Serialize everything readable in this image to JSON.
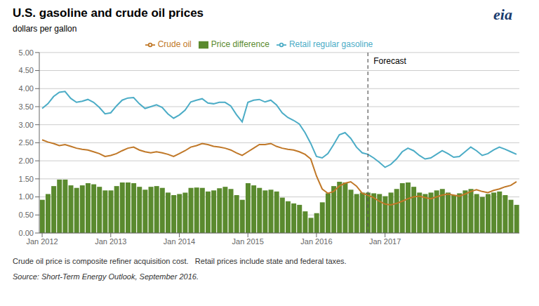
{
  "chart_data": {
    "type": "bar",
    "title": "U.S. gasoline and crude oil prices",
    "subtitle": "dollars per gallon",
    "footnote": "Crude oil price is composite refiner acquisition cost.   Retail prices include state and federal taxes.",
    "source": "Source: Short-Term Energy Outlook, September 2016.",
    "logo_text": "eia",
    "categories": [
      "Jan 2012",
      null,
      null,
      null,
      null,
      null,
      null,
      null,
      null,
      null,
      null,
      null,
      "Jan 2013",
      null,
      null,
      null,
      null,
      null,
      null,
      null,
      null,
      null,
      null,
      null,
      "Jan 2014",
      null,
      null,
      null,
      null,
      null,
      null,
      null,
      null,
      null,
      null,
      null,
      "Jan 2015",
      null,
      null,
      null,
      null,
      null,
      null,
      null,
      null,
      null,
      null,
      null,
      "Jan 2016",
      null,
      null,
      null,
      null,
      null,
      null,
      null,
      null,
      null,
      null,
      null,
      "Jan 2017",
      null,
      null,
      null,
      null,
      null,
      null,
      null,
      null,
      null,
      null,
      null,
      null,
      null,
      null,
      null,
      null,
      null,
      null,
      null,
      null,
      null,
      null,
      null
    ],
    "series": [
      {
        "name": "Price difference",
        "type": "bar",
        "color": "#5a8a2e",
        "values": [
          0.92,
          1.08,
          1.3,
          1.48,
          1.48,
          1.32,
          1.25,
          1.32,
          1.38,
          1.35,
          1.28,
          1.18,
          1.18,
          1.3,
          1.4,
          1.4,
          1.38,
          1.28,
          1.2,
          1.28,
          1.3,
          1.25,
          1.12,
          1.05,
          1.08,
          1.12,
          1.25,
          1.26,
          1.25,
          1.15,
          1.18,
          1.24,
          1.28,
          1.22,
          1.05,
          0.92,
          1.38,
          1.32,
          1.25,
          1.18,
          1.2,
          1.15,
          0.98,
          0.88,
          0.82,
          0.78,
          0.6,
          0.42,
          0.55,
          0.85,
          1.1,
          1.3,
          1.42,
          1.4,
          1.2,
          1.08,
          1.12,
          1.12,
          1.1,
          1.08,
          1.02,
          1.12,
          1.22,
          1.38,
          1.4,
          1.28,
          1.12,
          1.08,
          1.12,
          1.18,
          1.22,
          1.12,
          1.05,
          1.1,
          1.18,
          1.22,
          1.08,
          1.0,
          1.08,
          1.12,
          1.15,
          1.05,
          0.92,
          0.78
        ]
      },
      {
        "name": "Retail regular gasoline",
        "type": "line",
        "color": "#4bacc6",
        "values": [
          3.45,
          3.58,
          3.78,
          3.9,
          3.92,
          3.73,
          3.62,
          3.65,
          3.7,
          3.62,
          3.48,
          3.3,
          3.33,
          3.52,
          3.68,
          3.74,
          3.75,
          3.58,
          3.45,
          3.5,
          3.55,
          3.48,
          3.3,
          3.18,
          3.27,
          3.4,
          3.63,
          3.68,
          3.72,
          3.6,
          3.58,
          3.62,
          3.62,
          3.52,
          3.28,
          3.08,
          3.62,
          3.68,
          3.7,
          3.63,
          3.68,
          3.55,
          3.33,
          3.2,
          3.12,
          3.02,
          2.78,
          2.48,
          2.12,
          2.08,
          2.2,
          2.45,
          2.72,
          2.78,
          2.62,
          2.38,
          2.22,
          2.18,
          2.08,
          1.96,
          1.82,
          1.9,
          2.05,
          2.25,
          2.35,
          2.28,
          2.15,
          2.05,
          2.08,
          2.18,
          2.28,
          2.2,
          2.1,
          2.12,
          2.25,
          2.38,
          2.28,
          2.15,
          2.2,
          2.3,
          2.38,
          2.32,
          2.25,
          2.18
        ]
      },
      {
        "name": "Crude oil",
        "type": "line",
        "color": "#c07828",
        "values": [
          2.58,
          2.52,
          2.48,
          2.42,
          2.45,
          2.4,
          2.35,
          2.32,
          2.3,
          2.25,
          2.2,
          2.12,
          2.15,
          2.2,
          2.28,
          2.35,
          2.38,
          2.3,
          2.25,
          2.22,
          2.25,
          2.22,
          2.18,
          2.12,
          2.2,
          2.28,
          2.38,
          2.42,
          2.48,
          2.45,
          2.4,
          2.38,
          2.35,
          2.3,
          2.22,
          2.15,
          2.25,
          2.35,
          2.45,
          2.45,
          2.48,
          2.4,
          2.35,
          2.32,
          2.3,
          2.25,
          2.18,
          2.05,
          1.58,
          1.22,
          1.1,
          1.15,
          1.3,
          1.38,
          1.42,
          1.3,
          1.1,
          1.05,
          0.98,
          0.88,
          0.8,
          0.78,
          0.82,
          0.88,
          0.95,
          1.0,
          1.02,
          0.98,
          0.95,
          1.0,
          1.05,
          1.08,
          1.05,
          1.02,
          1.08,
          1.15,
          1.2,
          1.15,
          1.12,
          1.18,
          1.22,
          1.28,
          1.32,
          1.42
        ]
      }
    ],
    "ylim": [
      0.0,
      5.0
    ],
    "yticks": [
      {
        "value": 0.0,
        "label": "0.00"
      },
      {
        "value": 0.5,
        "label": "0.50"
      },
      {
        "value": 1.0,
        "label": "1.00"
      },
      {
        "value": 1.5,
        "label": "1.50"
      },
      {
        "value": 2.0,
        "label": "2.00"
      },
      {
        "value": 2.5,
        "label": "2.50"
      },
      {
        "value": 3.0,
        "label": "3.00"
      },
      {
        "value": 3.5,
        "label": "3.50"
      },
      {
        "value": 4.0,
        "label": "4.00"
      },
      {
        "value": 4.5,
        "label": "4.50"
      },
      {
        "value": 5.0,
        "label": "5.00"
      }
    ],
    "grid": true,
    "legend": "top",
    "annotations": [
      {
        "text": "Forecast",
        "x": 57
      }
    ]
  }
}
